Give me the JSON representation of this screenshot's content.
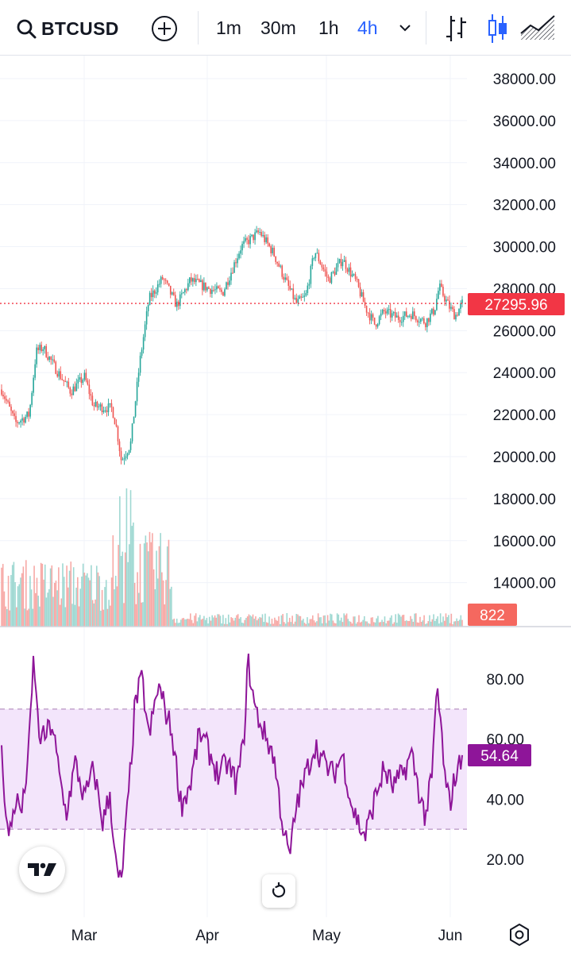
{
  "toolbar": {
    "symbol": "BTCUSD",
    "timeframes": [
      {
        "label": "1m",
        "active": false
      },
      {
        "label": "30m",
        "active": false
      },
      {
        "label": "1h",
        "active": false
      },
      {
        "label": "4h",
        "active": true
      }
    ],
    "icons": [
      "search-icon",
      "add-symbol-icon",
      "chevron-down-icon",
      "bar-chart-icon",
      "candlestick-chart-icon",
      "area-chart-icon"
    ]
  },
  "colors": {
    "up": "#26a69a",
    "down": "#ef5350",
    "rsi": "#8e1599",
    "rsi_band": "#f3e5fb",
    "accent": "#2962ff",
    "last_price": "#f23645"
  },
  "chart_data": [
    {
      "type": "candlestick",
      "ylim": [
        19000,
        39000
      ],
      "price_ticks": [
        "38000.00",
        "36000.00",
        "34000.00",
        "32000.00",
        "30000.00",
        "28000.00",
        "26000.00",
        "24000.00",
        "22000.00",
        "20000.00",
        "18000.00",
        "16000.00",
        "14000.00"
      ],
      "x_ticks": [
        "Mar",
        "Apr",
        "May",
        "Jun"
      ],
      "last_price": "27295.96",
      "path": [
        [
          0,
          23200
        ],
        [
          0.03,
          21600
        ],
        [
          0.06,
          22000
        ],
        [
          0.075,
          25000
        ],
        [
          0.09,
          25200
        ],
        [
          0.12,
          24100
        ],
        [
          0.15,
          23100
        ],
        [
          0.18,
          23800
        ],
        [
          0.2,
          22400
        ],
        [
          0.24,
          22300
        ],
        [
          0.25,
          21300
        ],
        [
          0.26,
          19800
        ],
        [
          0.28,
          20600
        ],
        [
          0.3,
          24500
        ],
        [
          0.32,
          27500
        ],
        [
          0.35,
          28500
        ],
        [
          0.38,
          27200
        ],
        [
          0.41,
          28400
        ],
        [
          0.45,
          28000
        ],
        [
          0.48,
          27800
        ],
        [
          0.52,
          30000
        ],
        [
          0.56,
          30700
        ],
        [
          0.59,
          29700
        ],
        [
          0.62,
          28200
        ],
        [
          0.64,
          27300
        ],
        [
          0.66,
          27600
        ],
        [
          0.68,
          29800
        ],
        [
          0.71,
          28400
        ],
        [
          0.74,
          29400
        ],
        [
          0.77,
          28300
        ],
        [
          0.79,
          27100
        ],
        [
          0.81,
          26300
        ],
        [
          0.83,
          26900
        ],
        [
          0.86,
          26600
        ],
        [
          0.89,
          26800
        ],
        [
          0.92,
          26400
        ],
        [
          0.94,
          27000
        ],
        [
          0.95,
          28100
        ],
        [
          0.97,
          27200
        ],
        [
          0.985,
          26700
        ],
        [
          1.0,
          27300
        ]
      ]
    },
    {
      "type": "bar",
      "name": "Volume",
      "last_value": "822",
      "peak_segment": [
        0.24,
        0.37
      ],
      "max_visible": 2400
    },
    {
      "type": "line",
      "name": "RSI",
      "ticks": [
        "80.00",
        "60.00",
        "40.00",
        "20.00"
      ],
      "ylim": [
        10,
        95
      ],
      "band": [
        30,
        70
      ],
      "last_value": "54.64",
      "values": [
        [
          0.0,
          55
        ],
        [
          0.015,
          26
        ],
        [
          0.03,
          40
        ],
        [
          0.045,
          36
        ],
        [
          0.06,
          58
        ],
        [
          0.07,
          88
        ],
        [
          0.08,
          62
        ],
        [
          0.09,
          60
        ],
        [
          0.11,
          65
        ],
        [
          0.125,
          48
        ],
        [
          0.14,
          35
        ],
        [
          0.16,
          52
        ],
        [
          0.18,
          40
        ],
        [
          0.2,
          50
        ],
        [
          0.22,
          32
        ],
        [
          0.235,
          42
        ],
        [
          0.25,
          15
        ],
        [
          0.26,
          12
        ],
        [
          0.275,
          40
        ],
        [
          0.29,
          72
        ],
        [
          0.305,
          80
        ],
        [
          0.32,
          60
        ],
        [
          0.34,
          78
        ],
        [
          0.355,
          70
        ],
        [
          0.37,
          62
        ],
        [
          0.39,
          38
        ],
        [
          0.41,
          45
        ],
        [
          0.43,
          62
        ],
        [
          0.45,
          56
        ],
        [
          0.47,
          48
        ],
        [
          0.49,
          52
        ],
        [
          0.51,
          45
        ],
        [
          0.525,
          58
        ],
        [
          0.535,
          86
        ],
        [
          0.55,
          70
        ],
        [
          0.57,
          62
        ],
        [
          0.59,
          55
        ],
        [
          0.61,
          32
        ],
        [
          0.625,
          20
        ],
        [
          0.64,
          38
        ],
        [
          0.66,
          48
        ],
        [
          0.68,
          58
        ],
        [
          0.7,
          52
        ],
        [
          0.72,
          48
        ],
        [
          0.74,
          55
        ],
        [
          0.76,
          38
        ],
        [
          0.78,
          30
        ],
        [
          0.79,
          28
        ],
        [
          0.81,
          40
        ],
        [
          0.83,
          50
        ],
        [
          0.85,
          44
        ],
        [
          0.87,
          48
        ],
        [
          0.89,
          55
        ],
        [
          0.91,
          40
        ],
        [
          0.92,
          34
        ],
        [
          0.935,
          48
        ],
        [
          0.945,
          78
        ],
        [
          0.955,
          62
        ],
        [
          0.965,
          42
        ],
        [
          0.975,
          40
        ],
        [
          0.985,
          48
        ],
        [
          0.992,
          50
        ],
        [
          1.0,
          54.64
        ]
      ]
    }
  ]
}
